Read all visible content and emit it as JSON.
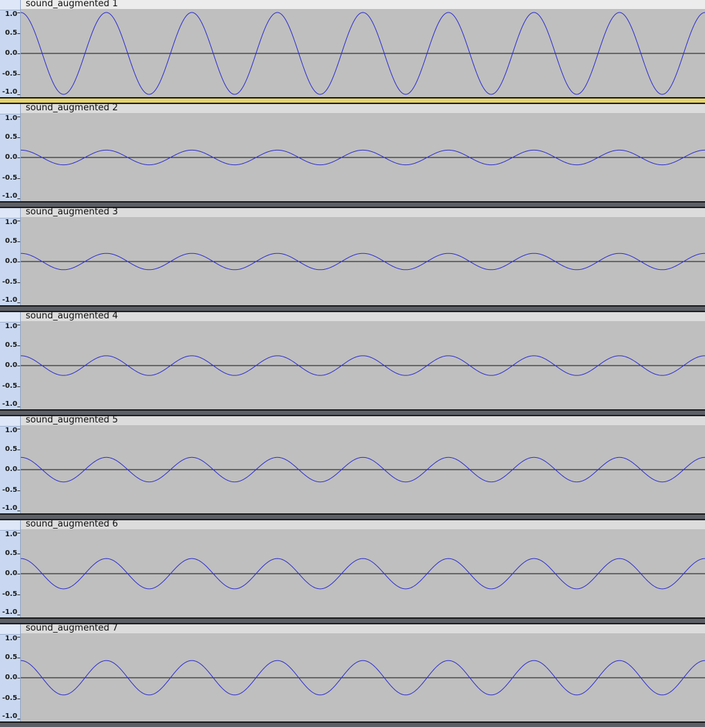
{
  "tracks": [
    {
      "name": "sound_augmented 1",
      "amplitude": 1.0,
      "selected": true
    },
    {
      "name": "sound_augmented 2",
      "amplitude": 0.18,
      "selected": false
    },
    {
      "name": "sound_augmented 3",
      "amplitude": 0.2,
      "selected": false
    },
    {
      "name": "sound_augmented 4",
      "amplitude": 0.24,
      "selected": false
    },
    {
      "name": "sound_augmented 5",
      "amplitude": 0.3,
      "selected": false
    },
    {
      "name": "sound_augmented 6",
      "amplitude": 0.37,
      "selected": false
    },
    {
      "name": "sound_augmented 7",
      "amplitude": 0.42,
      "selected": false
    }
  ],
  "scale_labels": [
    "1.0",
    "0.5",
    "0.0",
    "-0.5",
    "-1.0"
  ],
  "scale_values": [
    1.0,
    0.5,
    0.0,
    -0.5,
    -1.0
  ],
  "wave": {
    "cycles": 8,
    "phase_offset_cycles": 0.5
  },
  "colors": {
    "waveform": "#2b2bd0",
    "zero_line": "#111111",
    "track_background": "#bfbfbf",
    "ruler": "#c9d8f0",
    "selected_border": "#e6d36a"
  }
}
